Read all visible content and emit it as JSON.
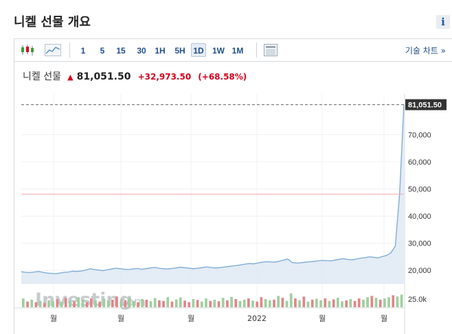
{
  "page": {
    "title": "니켈 선물 개요"
  },
  "toolbar": {
    "timeframes": [
      "1",
      "5",
      "15",
      "30",
      "1H",
      "5H",
      "1D",
      "1W",
      "1M"
    ],
    "active_timeframe": "1D",
    "technical_link": "기술 차트 »"
  },
  "quote": {
    "name": "니켈 선물",
    "price": "81,051.50",
    "change": "+32,973.50",
    "change_pct": "(+68.58%)",
    "color_down": "#d6001c"
  },
  "watermark": {
    "brand": "Investing",
    "suffix": ".com"
  },
  "colors": {
    "line": "#78a9d6",
    "area": "#dfe9f3",
    "vol_up": "#9fcf9f",
    "vol_down": "#e0868a",
    "ref_line": "#f2a5a8"
  },
  "chart_data": {
    "type": "area",
    "title": "",
    "ylim": [
      15000,
      85000
    ],
    "y_ticks": [
      "20,000",
      "30,000",
      "40,000",
      "50,000",
      "60,000",
      "70,000"
    ],
    "last_value_label": "81,051.50",
    "reference_value": 48078,
    "x_labels": [
      "월",
      "월",
      "월",
      "2022",
      "월",
      "월"
    ],
    "series": [
      {
        "values": [
          19500,
          19300,
          19200,
          19400,
          19600,
          19300,
          19000,
          18900,
          18800,
          19000,
          19300,
          19400,
          19700,
          19600,
          19800,
          20100,
          20600,
          20300,
          20100,
          19900,
          20200,
          20500,
          20800,
          20600,
          20400,
          20300,
          20500,
          20700,
          20400,
          20600,
          20900,
          21100,
          20800,
          20600,
          20500,
          20700,
          20900,
          21200,
          21000,
          20800,
          20600,
          20800,
          21000,
          21300,
          21100,
          20900,
          21000,
          21200,
          21400,
          21600,
          21800,
          22000,
          22300,
          22500,
          22400,
          22700,
          23000,
          23200,
          23100,
          23000,
          23400,
          23800,
          24200,
          22900,
          22700,
          22800,
          23000,
          23100,
          23300,
          23500,
          23700,
          23600,
          23500,
          23800,
          24100,
          24300,
          24000,
          23900,
          24200,
          24500,
          24700,
          25000,
          24800,
          24600,
          25100,
          25500,
          26500,
          29000,
          48078,
          81051
        ]
      }
    ],
    "volume": {
      "label": "25.0k",
      "max": 25000,
      "values": [
        14000,
        9000,
        12000,
        8000,
        10000,
        7000,
        11000,
        9500,
        13000,
        8500,
        15000,
        10000,
        9000,
        16000,
        12000,
        8000,
        14000,
        11000,
        9000,
        13500,
        10500,
        12000,
        17000,
        9000,
        11000,
        15000,
        10000,
        8000,
        13000,
        12000,
        9500,
        14500,
        11000,
        10000,
        16000,
        9000,
        12500,
        15500,
        10500,
        8000,
        13000,
        11500,
        9000,
        14000,
        10000,
        12000,
        9500,
        15000,
        11000,
        16500,
        13000,
        10000,
        12000,
        14000,
        10500,
        9000,
        16000,
        13000,
        11000,
        12000,
        18000,
        15000,
        10000,
        22000,
        14000,
        11000,
        17000,
        9000,
        12000,
        13500,
        11000,
        14000,
        10000,
        12500,
        15000,
        9500,
        11000,
        13000,
        10000,
        14000,
        12000,
        16000,
        18000,
        15000,
        12000,
        14000,
        16000,
        19000,
        17000,
        20000
      ],
      "up": [
        true,
        false,
        true,
        false,
        true,
        false,
        true,
        true,
        false,
        true,
        false,
        true,
        false,
        true,
        true,
        false,
        false,
        true,
        false,
        true,
        true,
        false,
        false,
        true,
        false,
        true,
        true,
        false,
        true,
        false,
        true,
        true,
        false,
        false,
        true,
        false,
        true,
        true,
        false,
        false,
        true,
        false,
        true,
        true,
        false,
        true,
        false,
        true,
        false,
        true,
        false,
        true,
        true,
        false,
        true,
        false,
        false,
        true,
        true,
        false,
        true,
        false,
        true,
        true,
        false,
        true,
        false,
        true,
        false,
        true,
        true,
        false,
        true,
        false,
        true,
        true,
        false,
        true,
        false,
        false,
        true,
        true,
        false,
        true,
        false,
        true,
        true,
        false,
        true,
        true
      ]
    }
  }
}
